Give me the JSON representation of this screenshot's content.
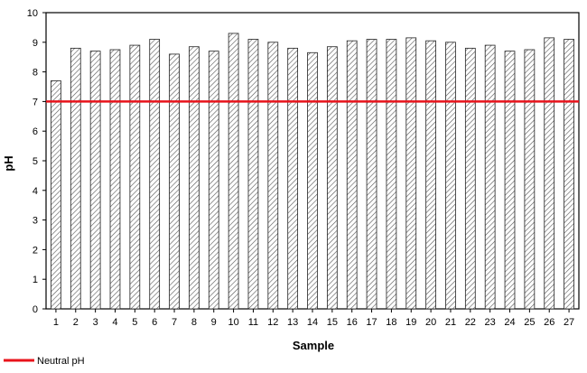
{
  "chart_data": {
    "type": "bar",
    "title": "",
    "xlabel": "Sample",
    "ylabel": "pH",
    "ylim": [
      0,
      10
    ],
    "yticks": [
      0,
      1,
      2,
      3,
      4,
      5,
      6,
      7,
      8,
      9,
      10
    ],
    "categories": [
      "1",
      "2",
      "3",
      "4",
      "5",
      "6",
      "7",
      "8",
      "9",
      "10",
      "11",
      "12",
      "13",
      "14",
      "15",
      "16",
      "17",
      "18",
      "19",
      "20",
      "21",
      "22",
      "23",
      "24",
      "25",
      "26",
      "27"
    ],
    "values": [
      7.7,
      8.8,
      8.7,
      8.75,
      8.9,
      9.1,
      8.6,
      8.85,
      8.7,
      9.3,
      9.1,
      9.0,
      8.8,
      8.65,
      8.85,
      9.05,
      9.1,
      9.1,
      9.15,
      9.05,
      9.0,
      8.8,
      8.9,
      8.7,
      8.75,
      9.15,
      9.1
    ],
    "reference_line": {
      "name": "Neutral pH",
      "value": 7,
      "color": "#e8131b"
    },
    "bar_style": {
      "fill": "#ffffff",
      "hatch_color": "#555555",
      "stroke": "#222222"
    },
    "legend": {
      "entries": [
        "Neutral pH"
      ],
      "placement": "bottom-left"
    },
    "grid": false
  }
}
